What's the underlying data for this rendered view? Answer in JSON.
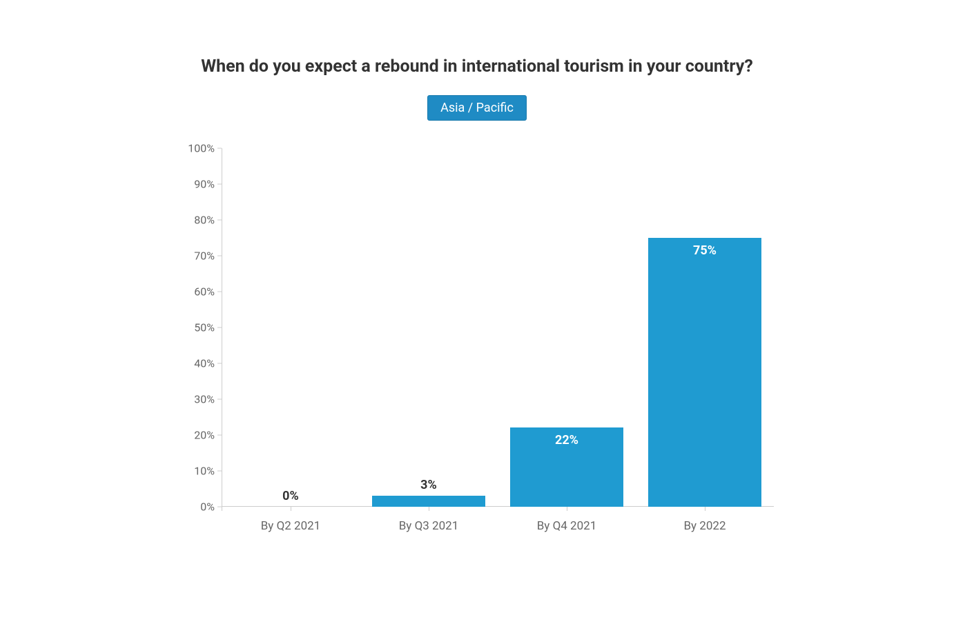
{
  "chart": {
    "type": "bar",
    "title": "When do you expect a rebound in international tourism in your country?",
    "title_fontsize": 25,
    "title_color": "#333333",
    "region_label": "Asia / Pacific",
    "region_badge_bg": "#1f8bc4",
    "region_badge_text_color": "#ffffff",
    "categories": [
      "By Q2 2021",
      "By Q3 2021",
      "By Q4 2021",
      "By 2022"
    ],
    "values": [
      0,
      3,
      22,
      75
    ],
    "value_labels": [
      "0%",
      "3%",
      "22%",
      "75%"
    ],
    "bar_color": "#1f9bd1",
    "background_color": "#ffffff",
    "axis_color": "#cccccc",
    "axis_label_color": "#666666",
    "ylim": [
      0,
      100
    ],
    "ytick_step": 10,
    "ytick_labels": [
      "0%",
      "10%",
      "20%",
      "30%",
      "40%",
      "50%",
      "60%",
      "70%",
      "80%",
      "90%",
      "100%"
    ],
    "label_inside_color": "#ffffff",
    "label_outside_color": "#333333",
    "label_inside_threshold": 10,
    "bar_width_ratio": 0.82,
    "axis_fontsize": 16,
    "category_fontsize": 17,
    "value_label_fontsize": 18
  }
}
